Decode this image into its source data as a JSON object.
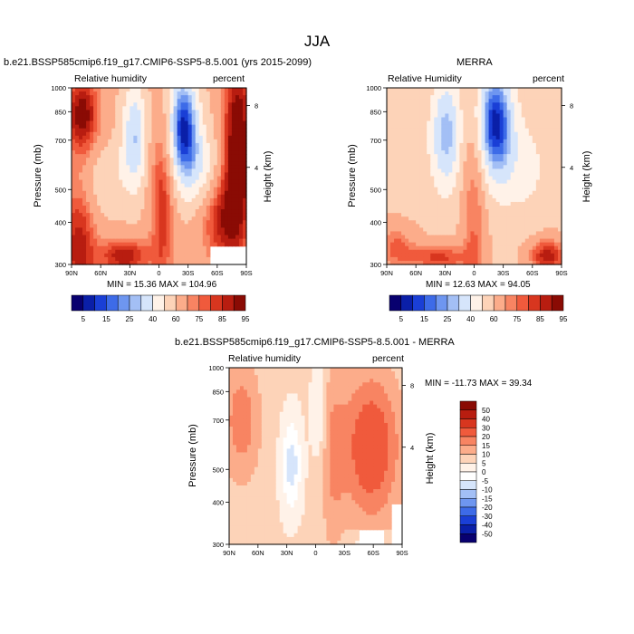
{
  "page": {
    "title": "JJA"
  },
  "colors": {
    "abs": [
      "#08006f",
      "#0a1fa8",
      "#1a3fd6",
      "#3d6be8",
      "#6e96f0",
      "#a3bff5",
      "#d6e5fb",
      "#fff2e8",
      "#fdd3b8",
      "#fcac8a",
      "#f88462",
      "#f05a3c",
      "#d8361f",
      "#b81d10",
      "#8a0b04"
    ],
    "diff": [
      "#08006f",
      "#0a1fa8",
      "#1a3fd6",
      "#3d6be8",
      "#6e96f0",
      "#a3bff5",
      "#d6e5fb",
      "#ffffff",
      "#fff2e8",
      "#fdd3b8",
      "#fcac8a",
      "#f88462",
      "#f05a3c",
      "#d8361f",
      "#b81d10",
      "#8a0b04"
    ]
  },
  "chart_data": [
    {
      "type": "heatmap",
      "title": "b.e21.BSSP585cmip6.f19_g17.CMIP6-SSP5-8.5.001 (yrs 2015-2099)",
      "left_string": "Relative humidity",
      "right_string": "percent",
      "ylabel": "Pressure (mb)",
      "ylabel_right": "Height (km)",
      "x_ticks": [
        "90N",
        "60N",
        "30N",
        "0",
        "30S",
        "60S",
        "90S"
      ],
      "y_ticks": [
        "300",
        "400",
        "500",
        "700",
        "850",
        "1000"
      ],
      "height_ticks": [
        "8",
        "4"
      ],
      "min_max": "MIN = 15.36  MAX = 104.96",
      "min": 15.36,
      "max": 104.96,
      "levels": [
        5,
        10,
        15,
        20,
        25,
        30,
        40,
        50,
        60,
        70,
        75,
        80,
        85,
        90,
        95
      ],
      "colorbar_labels": [
        "5",
        "15",
        "25",
        "40",
        "60",
        "75",
        "85",
        "95"
      ]
    },
    {
      "type": "heatmap",
      "title": "MERRA",
      "left_string": "Relative Humidity",
      "right_string": "percent",
      "ylabel": "Pressure (mb)",
      "ylabel_right": "Height (km)",
      "x_ticks": [
        "90N",
        "60N",
        "30N",
        "0",
        "30S",
        "60S",
        "90S"
      ],
      "y_ticks": [
        "300",
        "400",
        "500",
        "700",
        "850",
        "1000"
      ],
      "height_ticks": [
        "8",
        "4"
      ],
      "min_max": "MIN = 12.63  MAX = 94.05",
      "min": 12.63,
      "max": 94.05,
      "levels": [
        5,
        10,
        15,
        20,
        25,
        30,
        40,
        50,
        60,
        70,
        75,
        80,
        85,
        90,
        95
      ],
      "colorbar_labels": [
        "5",
        "15",
        "25",
        "40",
        "60",
        "75",
        "85",
        "95"
      ]
    },
    {
      "type": "heatmap",
      "title": "b.e21.BSSP585cmip6.f19_g17.CMIP6-SSP5-8.5.001 - MERRA",
      "left_string": "Relative humidity",
      "right_string": "percent",
      "ylabel": "Pressure (mb)",
      "ylabel_right": "Height (km)",
      "x_ticks": [
        "90N",
        "60N",
        "30N",
        "0",
        "30S",
        "60S",
        "90S"
      ],
      "y_ticks": [
        "300",
        "400",
        "500",
        "700",
        "850",
        "1000"
      ],
      "height_ticks": [
        "8",
        "4"
      ],
      "min_max": "MIN = -11.73  MAX =  39.34",
      "min": -11.73,
      "max": 39.34,
      "levels": [
        -50,
        -40,
        -30,
        -20,
        -15,
        -10,
        -5,
        0,
        5,
        10,
        15,
        20,
        30,
        40,
        50
      ],
      "colorbar_labels": [
        "50",
        "40",
        "30",
        "20",
        "15",
        "10",
        "5",
        "0",
        "-5",
        "-10",
        "-15",
        "-20",
        "-30",
        "-40",
        "-50"
      ]
    }
  ]
}
